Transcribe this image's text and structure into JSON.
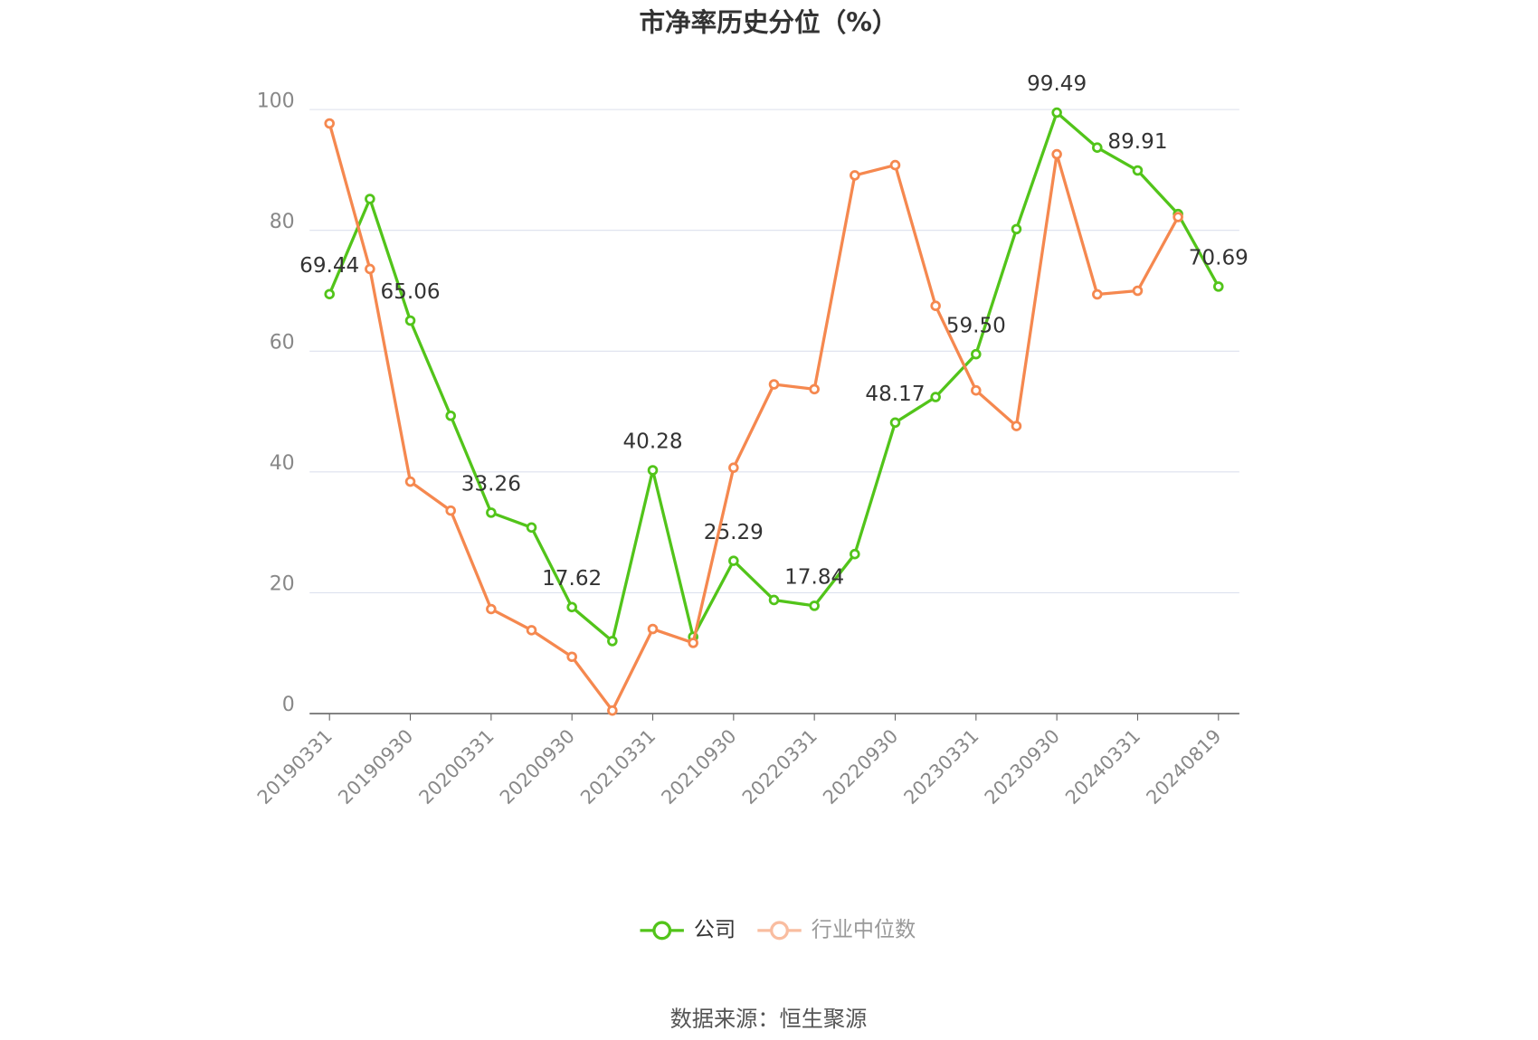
{
  "chart_data": {
    "type": "line",
    "title": "市净率历史分位（%）",
    "source": "数据来源：恒生聚源",
    "categories": [
      "20190331",
      null,
      "20190930",
      null,
      "20200331",
      null,
      "20200930",
      null,
      "20210331",
      null,
      "20210930",
      null,
      "20220331",
      null,
      "20220930",
      null,
      "20230331",
      null,
      "20230930",
      null,
      "20240331",
      null,
      "20240819"
    ],
    "series": [
      {
        "name": "公司",
        "color": "#52c41a",
        "values": [
          69.44,
          85.2,
          65.06,
          49.3,
          33.26,
          30.8,
          17.62,
          12.0,
          40.28,
          12.7,
          25.29,
          18.8,
          17.84,
          26.4,
          48.17,
          52.4,
          59.5,
          80.2,
          99.49,
          93.7,
          89.91,
          82.7,
          70.69
        ],
        "value_labels": [
          "69.44",
          null,
          "65.06",
          null,
          "33.26",
          null,
          "17.62",
          null,
          "40.28",
          null,
          "25.29",
          null,
          "17.84",
          null,
          "48.17",
          null,
          "59.50",
          null,
          "99.49",
          null,
          "89.91",
          null,
          "70.69"
        ]
      },
      {
        "name": "行业中位数",
        "color": "#f5884f",
        "values": [
          97.7,
          73.6,
          38.4,
          33.6,
          17.3,
          13.8,
          9.4,
          0.5,
          14.0,
          11.7,
          40.7,
          54.5,
          53.7,
          89.1,
          90.8,
          67.5,
          53.5,
          47.6,
          92.6,
          69.4,
          70.0,
          82.2,
          null
        ]
      }
    ],
    "ylim": [
      0,
      100
    ],
    "yticks": [
      0,
      20,
      40,
      60,
      80,
      100
    ],
    "grid": true
  }
}
